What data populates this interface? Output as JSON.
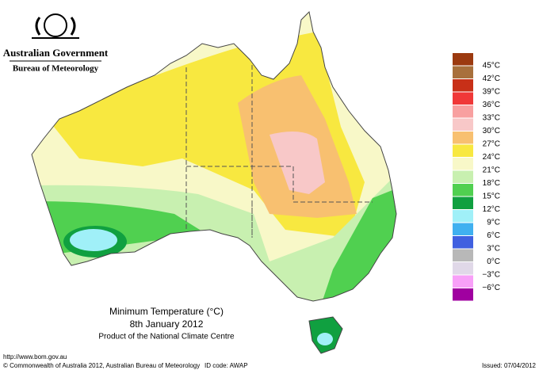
{
  "header": {
    "government": "Australian Government",
    "bureau": "Bureau of Meteorology"
  },
  "map": {
    "title": "Minimum Temperature (°C)",
    "date": "8th January 2012",
    "product": "Product of the National Climate Centre"
  },
  "legend": {
    "labels": [
      "45°C",
      "42°C",
      "39°C",
      "36°C",
      "33°C",
      "30°C",
      "27°C",
      "24°C",
      "21°C",
      "18°C",
      "15°C",
      "12°C",
      "9°C",
      "6°C",
      "3°C",
      "0°C",
      "−3°C",
      "−6°C"
    ],
    "colors": [
      "#9c3a10",
      "#a8703c",
      "#c83018",
      "#f03838",
      "#f8a0a0",
      "#f8c8c8",
      "#f8c070",
      "#f8e840",
      "#f8f8c8",
      "#c8f0b0",
      "#50d050",
      "#10a040",
      "#a0f0f8",
      "#40b0f0",
      "#4060e0",
      "#b8b8b8",
      "#e0d8e8",
      "#f8a0f8",
      "#a000a0"
    ]
  },
  "footer": {
    "url": "http://www.bom.gov.au",
    "copyright": "© Commonwealth of Australia 2012, Australian Bureau of Meteorology",
    "id_code": "ID code: AWAP",
    "issued": "Issued: 07/04/2012"
  }
}
